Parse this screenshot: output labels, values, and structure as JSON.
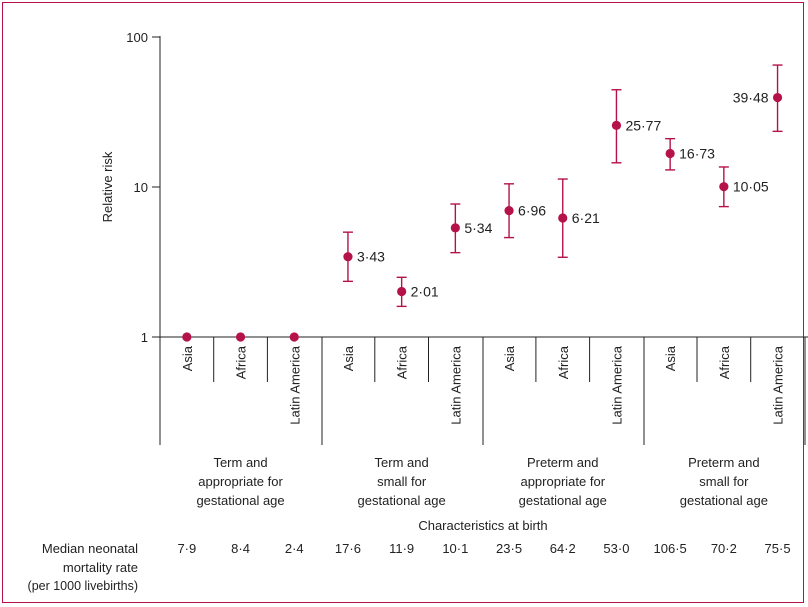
{
  "chart_data": {
    "type": "scatter",
    "scale": "log",
    "ylabel": "Relative risk",
    "xlabel": "Characteristics at birth",
    "yticks": [
      1,
      10,
      100
    ],
    "ylim": [
      1,
      100
    ],
    "groups": [
      {
        "label": [
          "Term and",
          "appropriate for",
          "gestational age"
        ]
      },
      {
        "label": [
          "Term and",
          "small for",
          "gestational age"
        ]
      },
      {
        "label": [
          "Preterm and",
          "appropriate for",
          "gestational age"
        ]
      },
      {
        "label": [
          "Preterm and",
          "small for",
          "gestational age"
        ]
      }
    ],
    "points": [
      {
        "group": 0,
        "region": "Asia",
        "rr": 1,
        "low": null,
        "high": null,
        "label": "",
        "mortality": "7·9"
      },
      {
        "group": 0,
        "region": "Africa",
        "rr": 1,
        "low": null,
        "high": null,
        "label": "",
        "mortality": "8·4"
      },
      {
        "group": 0,
        "region": "Latin America",
        "rr": 1,
        "low": null,
        "high": null,
        "label": "",
        "mortality": "2·4"
      },
      {
        "group": 1,
        "region": "Asia",
        "rr": 3.43,
        "low": 2.35,
        "high": 5.0,
        "label": "3·43",
        "mortality": "17·6"
      },
      {
        "group": 1,
        "region": "Africa",
        "rr": 2.01,
        "low": 1.6,
        "high": 2.5,
        "label": "2·01",
        "mortality": "11·9"
      },
      {
        "group": 1,
        "region": "Latin America",
        "rr": 5.34,
        "low": 3.65,
        "high": 7.7,
        "label": "5·34",
        "mortality": "10·1"
      },
      {
        "group": 2,
        "region": "Asia",
        "rr": 6.96,
        "low": 4.6,
        "high": 10.5,
        "label": "6·96",
        "mortality": "23·5"
      },
      {
        "group": 2,
        "region": "Africa",
        "rr": 6.21,
        "low": 3.4,
        "high": 11.3,
        "label": "6·21",
        "mortality": "64·2"
      },
      {
        "group": 2,
        "region": "Latin America",
        "rr": 25.77,
        "low": 14.5,
        "high": 44.5,
        "label": "25·77",
        "mortality": "53·0"
      },
      {
        "group": 3,
        "region": "Asia",
        "rr": 16.73,
        "low": 13.0,
        "high": 21.0,
        "label": "16·73",
        "mortality": "106·5"
      },
      {
        "group": 3,
        "region": "Africa",
        "rr": 10.05,
        "low": 7.4,
        "high": 13.6,
        "label": "10·05",
        "mortality": "70·2"
      },
      {
        "group": 3,
        "region": "Latin America",
        "rr": 39.48,
        "low": 23.5,
        "high": 65.0,
        "label": "39·48",
        "mortality": "75·5"
      }
    ],
    "mortality_label": [
      "Median neonatal",
      "mortality rate",
      "(per 1000 livebirths)"
    ],
    "colors": {
      "marker": "#b5124a",
      "axis": "#222222"
    }
  }
}
